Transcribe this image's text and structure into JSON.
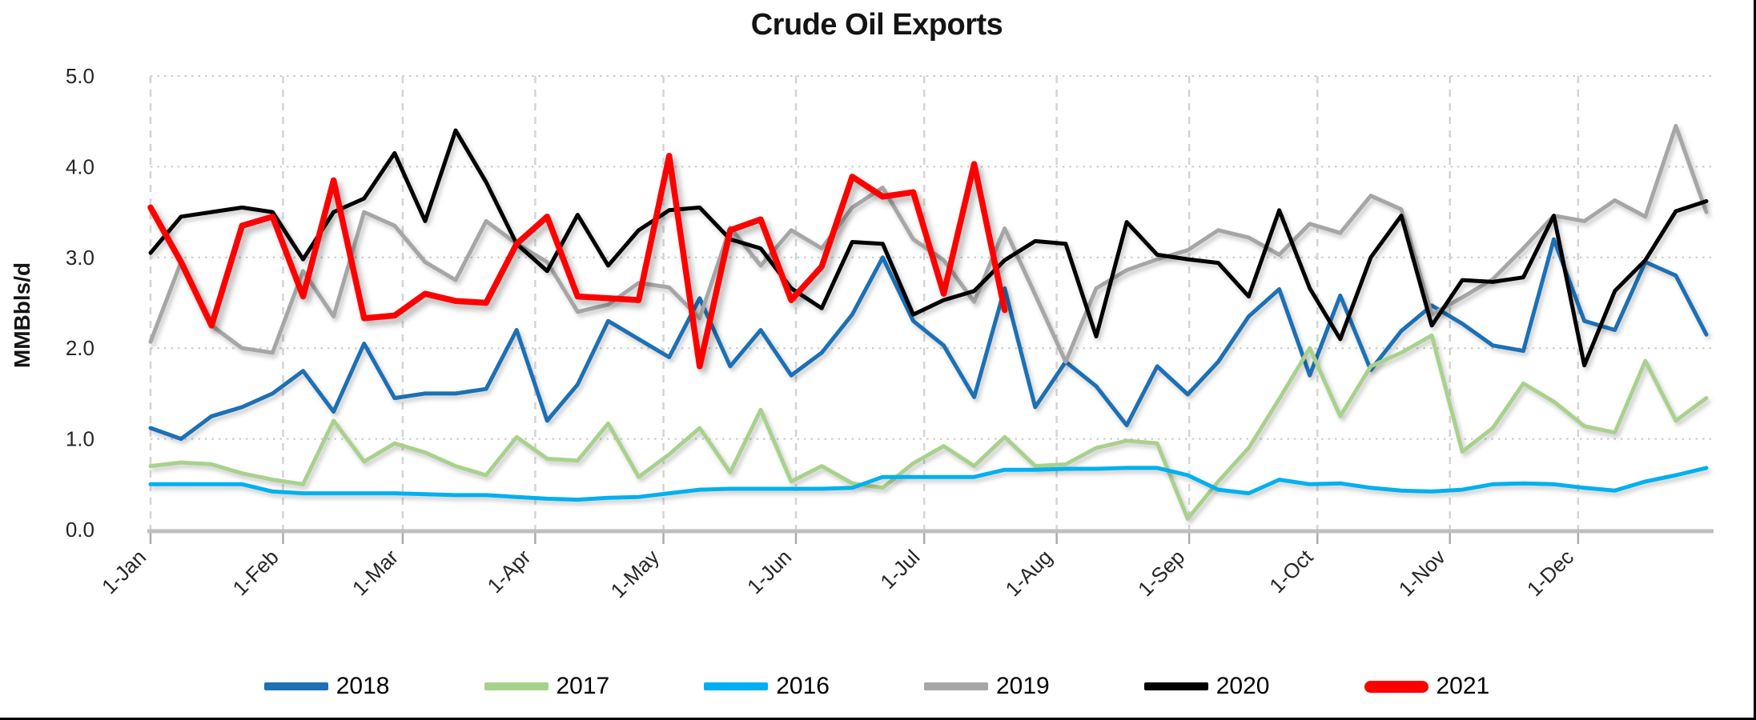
{
  "chart_data": {
    "type": "line",
    "title": "Crude Oil Exports",
    "ylabel": "MMBbls/d",
    "ylim": [
      0,
      5
    ],
    "ytick_labels": [
      "0.0",
      "1.0",
      "2.0",
      "3.0",
      "4.0",
      "5.0"
    ],
    "grid": "both",
    "legend_position": "bottom",
    "x_axis_months": [
      {
        "label": "1-Jan",
        "day": 0
      },
      {
        "label": "1-Feb",
        "day": 31
      },
      {
        "label": "1-Mar",
        "day": 59
      },
      {
        "label": "1-Apr",
        "day": 90
      },
      {
        "label": "1-May",
        "day": 120
      },
      {
        "label": "1-Jun",
        "day": 151
      },
      {
        "label": "1-Jul",
        "day": 181
      },
      {
        "label": "1-Aug",
        "day": 212
      },
      {
        "label": "1-Sep",
        "day": 243
      },
      {
        "label": "1-Oct",
        "day": 273
      },
      {
        "label": "1-Nov",
        "day": 304
      },
      {
        "label": "1-Dec",
        "day": 334
      }
    ],
    "points_per_full_year": 52,
    "x_unit": "weekly",
    "series": [
      {
        "name": "2018",
        "color": "#1F6FB5",
        "width": 5,
        "values": [
          1.12,
          1.0,
          1.25,
          1.35,
          1.5,
          1.75,
          1.3,
          2.05,
          1.45,
          1.5,
          1.5,
          1.55,
          2.2,
          1.2,
          1.6,
          2.3,
          2.1,
          1.9,
          2.55,
          1.8,
          2.2,
          1.7,
          1.95,
          2.37,
          3.0,
          2.3,
          2.03,
          1.46,
          2.66,
          1.35,
          1.85,
          1.58,
          1.15,
          1.8,
          1.49,
          1.85,
          2.35,
          2.65,
          1.7,
          2.58,
          1.76,
          2.19,
          2.47,
          2.27,
          2.03,
          1.97,
          3.2,
          2.3,
          2.2,
          2.95,
          2.8,
          2.15
        ]
      },
      {
        "name": "2017",
        "color": "#A9D18E",
        "width": 5,
        "values": [
          0.7,
          0.74,
          0.72,
          0.62,
          0.55,
          0.5,
          1.2,
          0.75,
          0.95,
          0.85,
          0.7,
          0.6,
          1.02,
          0.78,
          0.76,
          1.17,
          0.58,
          0.83,
          1.12,
          0.63,
          1.32,
          0.53,
          0.7,
          0.51,
          0.46,
          0.73,
          0.92,
          0.7,
          1.02,
          0.7,
          0.72,
          0.9,
          0.98,
          0.95,
          0.12,
          0.53,
          0.9,
          1.44,
          2.0,
          1.25,
          1.8,
          1.95,
          2.14,
          0.86,
          1.12,
          1.61,
          1.41,
          1.14,
          1.07,
          1.86,
          1.2,
          1.45
        ]
      },
      {
        "name": "2016",
        "color": "#00B0F0",
        "width": 5,
        "values": [
          0.5,
          0.5,
          0.5,
          0.5,
          0.42,
          0.4,
          0.4,
          0.4,
          0.4,
          0.39,
          0.38,
          0.38,
          0.36,
          0.34,
          0.33,
          0.35,
          0.36,
          0.4,
          0.44,
          0.45,
          0.45,
          0.45,
          0.45,
          0.46,
          0.58,
          0.58,
          0.58,
          0.58,
          0.66,
          0.66,
          0.67,
          0.67,
          0.68,
          0.68,
          0.6,
          0.44,
          0.4,
          0.55,
          0.5,
          0.51,
          0.46,
          0.43,
          0.42,
          0.44,
          0.5,
          0.51,
          0.5,
          0.46,
          0.43,
          0.53,
          0.6,
          0.68
        ]
      },
      {
        "name": "2019",
        "color": "#A6A6A6",
        "width": 5,
        "values": [
          2.07,
          2.95,
          2.25,
          2.0,
          1.95,
          2.85,
          2.35,
          3.5,
          3.35,
          2.95,
          2.75,
          3.4,
          3.15,
          2.95,
          2.4,
          2.48,
          2.72,
          2.67,
          2.33,
          3.33,
          2.91,
          3.3,
          3.1,
          3.55,
          3.77,
          3.2,
          2.97,
          2.51,
          3.32,
          2.59,
          1.85,
          2.66,
          2.86,
          2.98,
          3.08,
          3.3,
          3.22,
          3.03,
          3.37,
          3.27,
          3.68,
          3.53,
          2.37,
          2.56,
          2.76,
          3.1,
          3.46,
          3.4,
          3.63,
          3.45,
          4.45,
          3.5
        ]
      },
      {
        "name": "2020",
        "color": "#000000",
        "width": 5,
        "values": [
          3.05,
          3.45,
          3.5,
          3.55,
          3.5,
          2.98,
          3.5,
          3.65,
          4.15,
          3.4,
          4.4,
          3.83,
          3.15,
          2.85,
          3.47,
          2.91,
          3.3,
          3.52,
          3.55,
          3.2,
          3.1,
          2.66,
          2.44,
          3.17,
          3.15,
          2.37,
          2.53,
          2.63,
          2.97,
          3.18,
          3.15,
          2.13,
          3.39,
          3.03,
          2.98,
          2.94,
          2.57,
          3.52,
          2.66,
          2.1,
          3.0,
          3.46,
          2.25,
          2.75,
          2.73,
          2.78,
          3.46,
          1.81,
          2.63,
          2.97,
          3.51,
          3.62
        ]
      },
      {
        "name": "2021",
        "color": "#FF0000",
        "width": 7.5,
        "values": [
          3.55,
          2.95,
          2.25,
          3.35,
          3.45,
          2.57,
          3.85,
          2.33,
          2.36,
          2.6,
          2.52,
          2.5,
          3.15,
          3.45,
          2.57,
          2.55,
          2.53,
          4.12,
          1.8,
          3.3,
          3.42,
          2.53,
          2.9,
          3.89,
          3.67,
          3.72,
          2.6,
          4.03,
          2.42
        ]
      }
    ]
  }
}
